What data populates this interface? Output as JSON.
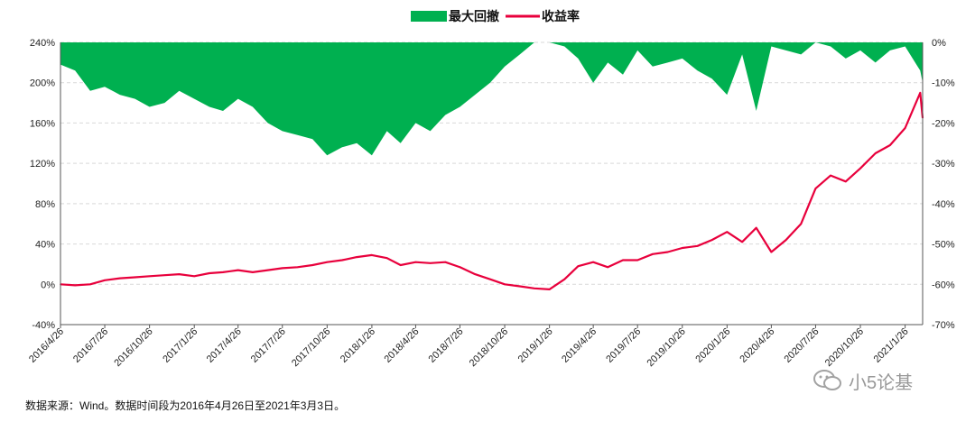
{
  "chart_data": {
    "type": "line",
    "title": "",
    "series": [
      {
        "name": "最大回撤",
        "kind": "area",
        "axis": "right",
        "color": "#00b050",
        "x": [
          "2016/4/26",
          "2016/5/26",
          "2016/6/26",
          "2016/7/26",
          "2016/8/26",
          "2016/9/26",
          "2016/10/26",
          "2016/11/26",
          "2016/12/26",
          "2017/1/26",
          "2017/2/26",
          "2017/3/26",
          "2017/4/26",
          "2017/5/26",
          "2017/6/26",
          "2017/7/26",
          "2017/8/26",
          "2017/9/26",
          "2017/10/26",
          "2017/11/26",
          "2017/12/26",
          "2018/1/26",
          "2018/2/26",
          "2018/3/26",
          "2018/4/26",
          "2018/5/26",
          "2018/6/26",
          "2018/7/26",
          "2018/8/26",
          "2018/9/26",
          "2018/10/26",
          "2018/11/26",
          "2018/12/26",
          "2019/1/26",
          "2019/2/26",
          "2019/3/26",
          "2019/4/26",
          "2019/5/26",
          "2019/6/26",
          "2019/7/26",
          "2019/8/26",
          "2019/9/26",
          "2019/10/26",
          "2019/11/26",
          "2019/12/26",
          "2020/1/26",
          "2020/2/26",
          "2020/3/26",
          "2020/4/26",
          "2020/5/26",
          "2020/6/26",
          "2020/7/26",
          "2020/8/26",
          "2020/9/26",
          "2020/10/26",
          "2020/11/26",
          "2020/12/26",
          "2021/1/26",
          "2021/2/26",
          "2021/3/3"
        ],
        "values": [
          -5.5,
          -7,
          -12,
          -11,
          -13,
          -14,
          -16,
          -15,
          -12,
          -14,
          -16,
          -17,
          -14,
          -16,
          -20,
          -22,
          -23,
          -24,
          -28,
          -26,
          -25,
          -28,
          -22,
          -25,
          -20,
          -22,
          -18,
          -16,
          -13,
          -10,
          -6,
          -3,
          0,
          0,
          -1,
          -4,
          -10,
          -5,
          -8,
          -2,
          -6,
          -5,
          -4,
          -7,
          -9,
          -13,
          -3,
          -17,
          -1,
          -2,
          -3,
          0,
          -1,
          -4,
          -2,
          -5,
          -2,
          -1,
          -7,
          -10
        ]
      },
      {
        "name": "收益率",
        "kind": "line",
        "axis": "left",
        "color": "#e8003c",
        "x": [
          "2016/4/26",
          "2016/5/26",
          "2016/6/26",
          "2016/7/26",
          "2016/8/26",
          "2016/9/26",
          "2016/10/26",
          "2016/11/26",
          "2016/12/26",
          "2017/1/26",
          "2017/2/26",
          "2017/3/26",
          "2017/4/26",
          "2017/5/26",
          "2017/6/26",
          "2017/7/26",
          "2017/8/26",
          "2017/9/26",
          "2017/10/26",
          "2017/11/26",
          "2017/12/26",
          "2018/1/26",
          "2018/2/26",
          "2018/3/26",
          "2018/4/26",
          "2018/5/26",
          "2018/6/26",
          "2018/7/26",
          "2018/8/26",
          "2018/9/26",
          "2018/10/26",
          "2018/11/26",
          "2018/12/26",
          "2019/1/26",
          "2019/2/26",
          "2019/3/26",
          "2019/4/26",
          "2019/5/26",
          "2019/6/26",
          "2019/7/26",
          "2019/8/26",
          "2019/9/26",
          "2019/10/26",
          "2019/11/26",
          "2019/12/26",
          "2020/1/26",
          "2020/2/26",
          "2020/3/26",
          "2020/4/26",
          "2020/5/26",
          "2020/6/26",
          "2020/7/26",
          "2020/8/26",
          "2020/9/26",
          "2020/10/26",
          "2020/11/26",
          "2020/12/26",
          "2021/1/26",
          "2021/2/26",
          "2021/3/3"
        ],
        "values": [
          0,
          -1,
          0,
          4,
          6,
          7,
          8,
          9,
          10,
          8,
          11,
          12,
          14,
          12,
          14,
          16,
          17,
          19,
          22,
          24,
          27,
          29,
          26,
          19,
          22,
          21,
          22,
          17,
          10,
          5,
          0,
          -2,
          -4,
          -5,
          5,
          18,
          22,
          17,
          24,
          24,
          30,
          32,
          36,
          38,
          44,
          52,
          42,
          56,
          32,
          44,
          60,
          95,
          108,
          102,
          115,
          130,
          138,
          155,
          190,
          165
        ]
      }
    ],
    "x_axis": {
      "tick_labels": [
        "2016/4/26",
        "2016/7/26",
        "2016/10/26",
        "2017/1/26",
        "2017/4/26",
        "2017/7/26",
        "2017/10/26",
        "2018/1/26",
        "2018/4/26",
        "2018/7/26",
        "2018/10/26",
        "2019/1/26",
        "2019/4/26",
        "2019/7/26",
        "2019/10/26",
        "2020/1/26",
        "2020/4/26",
        "2020/7/26",
        "2020/10/26",
        "2021/1/26"
      ]
    },
    "y_left": {
      "label": "",
      "range": [
        -40,
        240
      ],
      "tick_labels": [
        "-40%",
        "0%",
        "40%",
        "80%",
        "120%",
        "160%",
        "200%",
        "240%"
      ]
    },
    "y_right": {
      "label": "",
      "range": [
        -70,
        0
      ],
      "tick_labels": [
        "-70%",
        "-60%",
        "-50%",
        "-40%",
        "-30%",
        "-20%",
        "-10%",
        "0%"
      ]
    },
    "grid": true,
    "legend": "top-center"
  },
  "source_note": "数据来源：Wind。数据时间段为2016年4月26日至2021年3月3日。",
  "watermark": {
    "icon": "wechat-icon",
    "text": "小5论基"
  }
}
